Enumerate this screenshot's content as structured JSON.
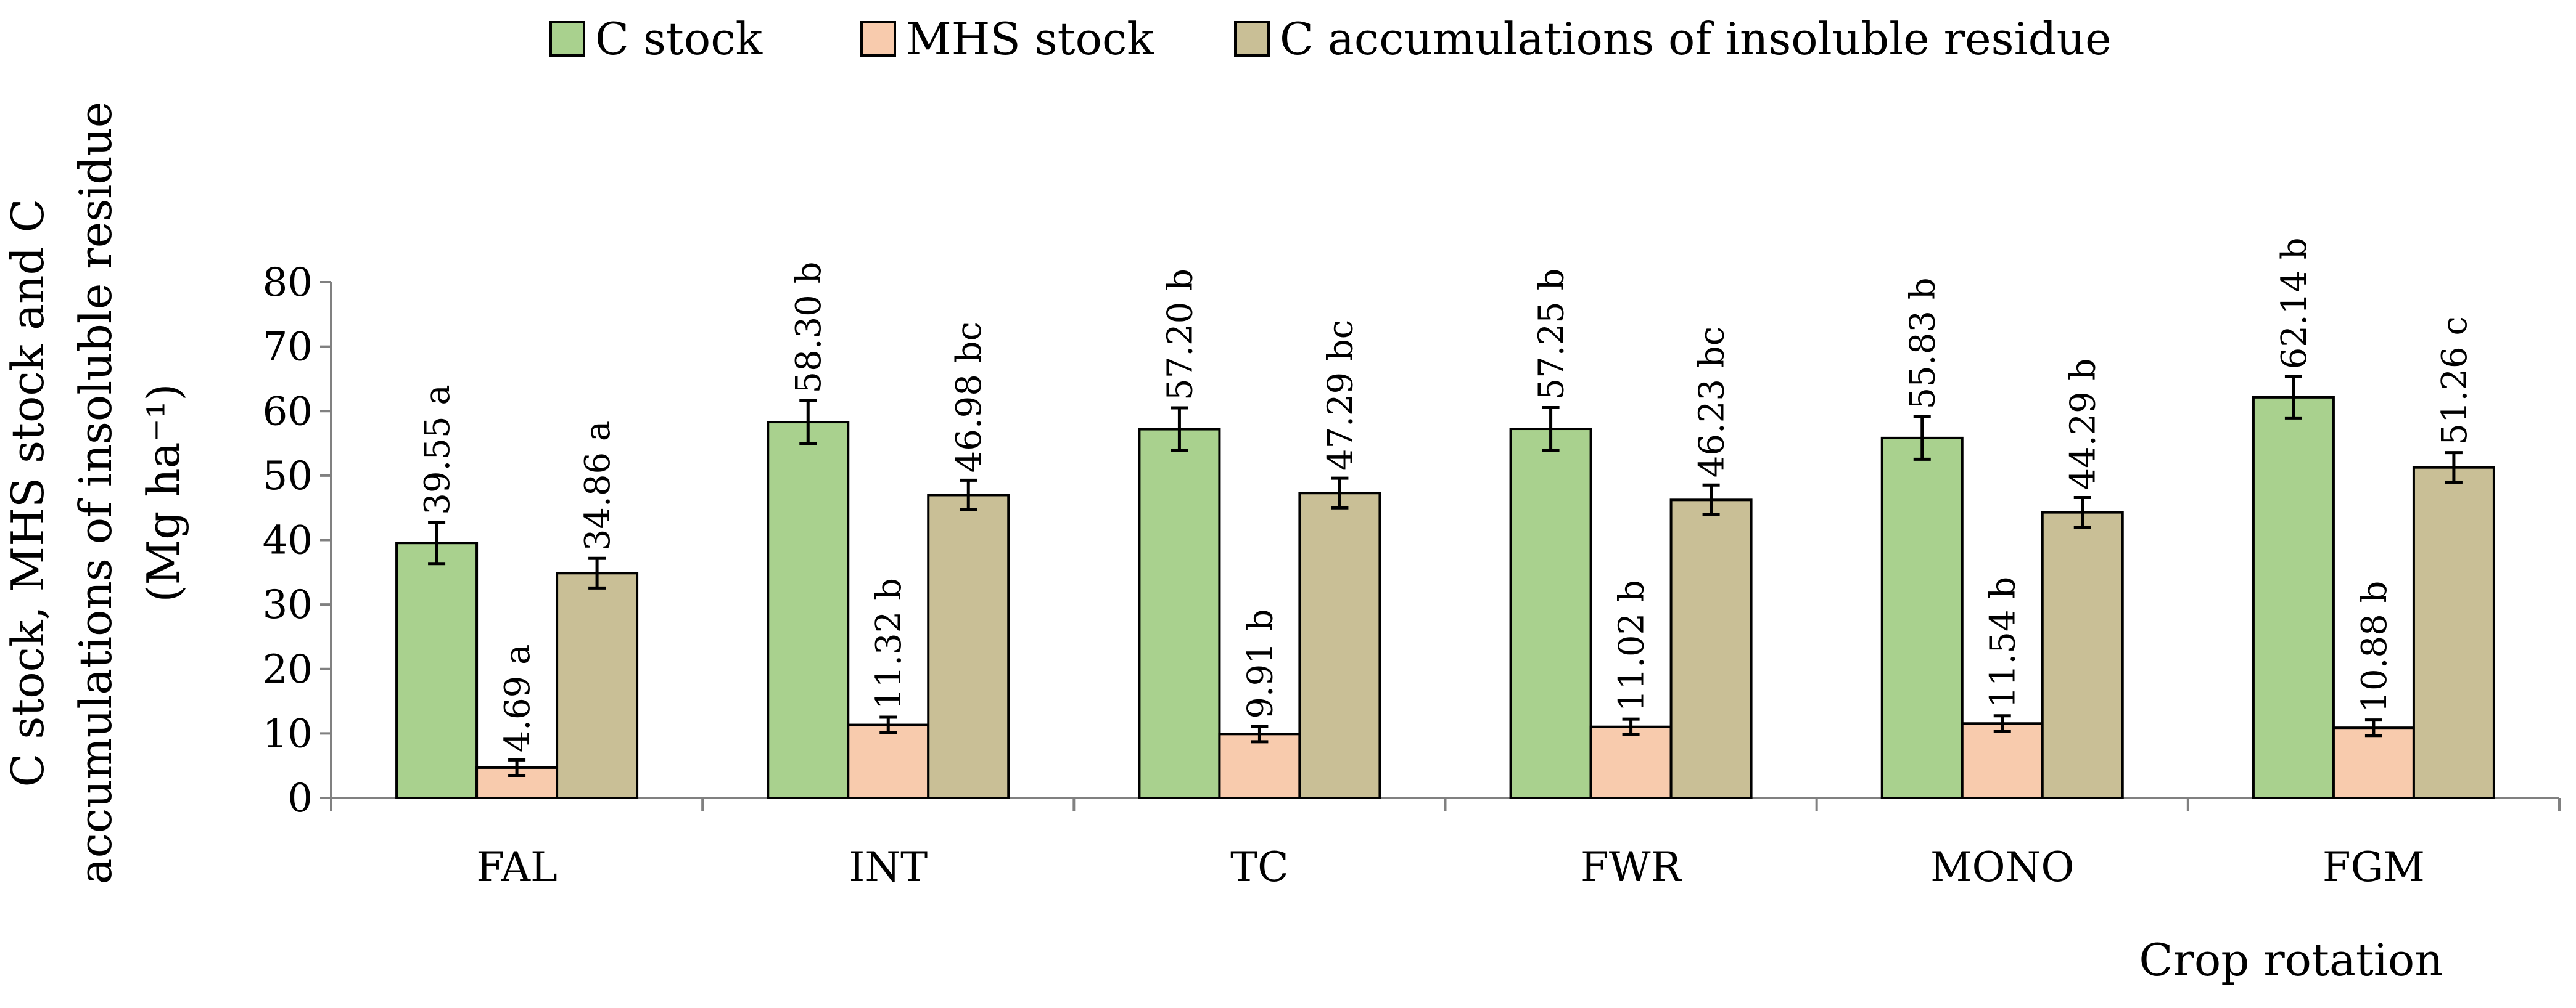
{
  "chart_data": {
    "type": "bar",
    "title": "",
    "categories": [
      "FAL",
      "INT",
      "TC",
      "FWR",
      "MONO",
      "FGM"
    ],
    "series": [
      {
        "name": "C stock",
        "color": "#a9d18e",
        "values": [
          39.55,
          58.3,
          57.2,
          57.25,
          55.83,
          62.14
        ],
        "errors": [
          3.2,
          3.3,
          3.3,
          3.3,
          3.3,
          3.2
        ],
        "labels": [
          "39.55 a",
          "58.30 b",
          "57.20 b",
          "57.25 b",
          "55.83 b",
          "62.14 b"
        ]
      },
      {
        "name": "MHS stock",
        "color": "#f8cbad",
        "values": [
          4.69,
          11.32,
          9.91,
          11.02,
          11.54,
          10.88
        ],
        "errors": [
          1.2,
          1.2,
          1.2,
          1.2,
          1.2,
          1.2
        ],
        "labels": [
          "4.69 a",
          "11.32 b",
          "9.91 b",
          "11.02 b",
          "11.54 b",
          "10.88 b"
        ]
      },
      {
        "name": "C accumulations of insoluble residue",
        "color": "#c9bf96",
        "values": [
          34.86,
          46.98,
          47.29,
          46.23,
          44.29,
          51.26
        ],
        "errors": [
          2.3,
          2.3,
          2.3,
          2.3,
          2.3,
          2.3
        ],
        "labels": [
          "34.86 a",
          "46.98 bc",
          "47.29 bc",
          "46.23 bc",
          "44.29 b",
          "51.26 c"
        ]
      }
    ],
    "xlabel": "Crop rotation",
    "ylabel_lines": [
      "C stock, MHS stock and C",
      "accumulations of insoluble residue",
      "(Mg ha⁻¹)"
    ],
    "ylim": [
      0,
      80
    ],
    "yticks": [
      "0",
      "10",
      "20",
      "30",
      "40",
      "50",
      "60",
      "70",
      "80"
    ],
    "grid": false,
    "legend_position": "top-center"
  }
}
